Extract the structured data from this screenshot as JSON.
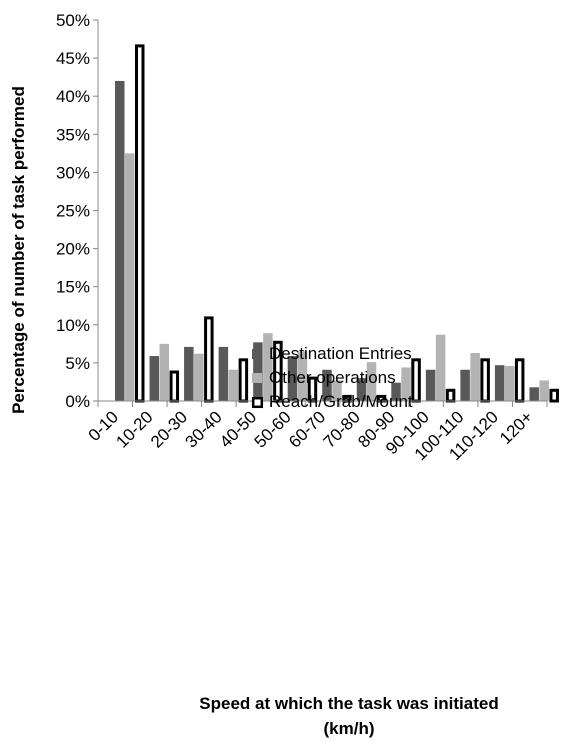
{
  "chart_data": {
    "type": "bar",
    "title": "",
    "xlabel": "Speed at which the task was initiated",
    "xlabel_line2": "(km/h)",
    "ylabel": "Percentage of number of task performed",
    "ylim": [
      0,
      50
    ],
    "ytick_step": 5,
    "ytick_format": "percent",
    "grid": false,
    "legend_position": "center-right",
    "categories": [
      "0-10",
      "10-20",
      "20-30",
      "30-40",
      "40-50",
      "50-60",
      "60-70",
      "70-80",
      "80-90",
      "90-100",
      "100-110",
      "110-120",
      "120+"
    ],
    "series": [
      {
        "name": "Destination Entries",
        "color": "#595959",
        "style": "solid",
        "values": [
          42.0,
          5.9,
          7.1,
          7.1,
          7.7,
          5.9,
          4.1,
          3.0,
          2.4,
          4.1,
          4.1,
          4.7,
          1.8
        ]
      },
      {
        "name": "Other operations",
        "color": "#b3b3b3",
        "style": "solid",
        "values": [
          32.5,
          7.5,
          6.2,
          4.1,
          8.9,
          6.5,
          2.7,
          5.1,
          4.4,
          8.7,
          6.3,
          4.6,
          2.7
        ]
      },
      {
        "name": "Reach/Grab/Mount",
        "color": "#000000",
        "style": "outline",
        "values": [
          46.8,
          4.0,
          11.1,
          5.6,
          7.9,
          3.2,
          0.8,
          0.8,
          5.6,
          1.6,
          5.6,
          5.6,
          1.6
        ]
      }
    ]
  }
}
